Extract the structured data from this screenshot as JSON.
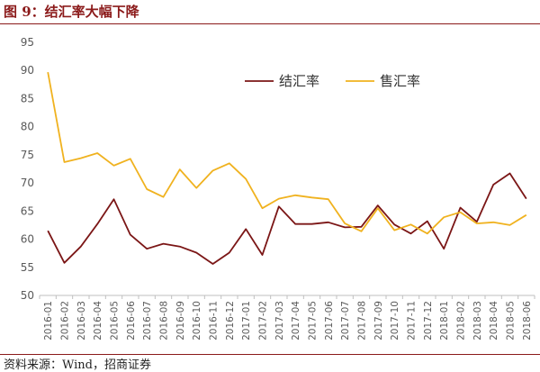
{
  "figure": {
    "title": "图 9：结汇率大幅下降",
    "source": "资料来源：Wind，招商证券"
  },
  "chart_data": {
    "type": "line",
    "title": "",
    "xlabel": "",
    "ylabel": "",
    "ylim": [
      50,
      95
    ],
    "yticks": [
      50,
      55,
      60,
      65,
      70,
      75,
      80,
      85,
      90,
      95
    ],
    "grid": false,
    "legend_position": "top-center",
    "categories": [
      "2016-01",
      "2016-02",
      "2016-03",
      "2016-04",
      "2016-05",
      "2016-06",
      "2016-07",
      "2016-08",
      "2016-09",
      "2016-10",
      "2016-11",
      "2016-12",
      "2017-01",
      "2017-02",
      "2017-03",
      "2017-04",
      "2017-05",
      "2017-06",
      "2017-07",
      "2017-08",
      "2017-09",
      "2017-10",
      "2017-11",
      "2017-12",
      "2018-01",
      "2018-02",
      "2018-03",
      "2018-04",
      "2018-05",
      "2018-06"
    ],
    "series": [
      {
        "name": "结汇率",
        "color": "#7b1616",
        "values": [
          61.5,
          55.8,
          58.7,
          62.7,
          67.1,
          60.8,
          58.3,
          59.2,
          58.7,
          57.6,
          55.6,
          57.6,
          61.8,
          57.2,
          65.8,
          62.7,
          62.7,
          63.0,
          62.1,
          62.2,
          66.0,
          62.6,
          61.0,
          63.2,
          58.3,
          65.6,
          63.1,
          69.7,
          71.7,
          67.2
        ]
      },
      {
        "name": "售汇率",
        "color": "#f0b21f",
        "values": [
          89.7,
          73.7,
          74.4,
          75.3,
          73.1,
          74.3,
          68.9,
          67.5,
          72.4,
          69.1,
          72.2,
          73.5,
          70.7,
          65.5,
          67.2,
          67.8,
          67.4,
          67.1,
          62.8,
          61.4,
          65.5,
          61.6,
          62.6,
          61.0,
          63.9,
          64.8,
          62.8,
          63.0,
          62.5,
          64.3
        ]
      }
    ]
  }
}
